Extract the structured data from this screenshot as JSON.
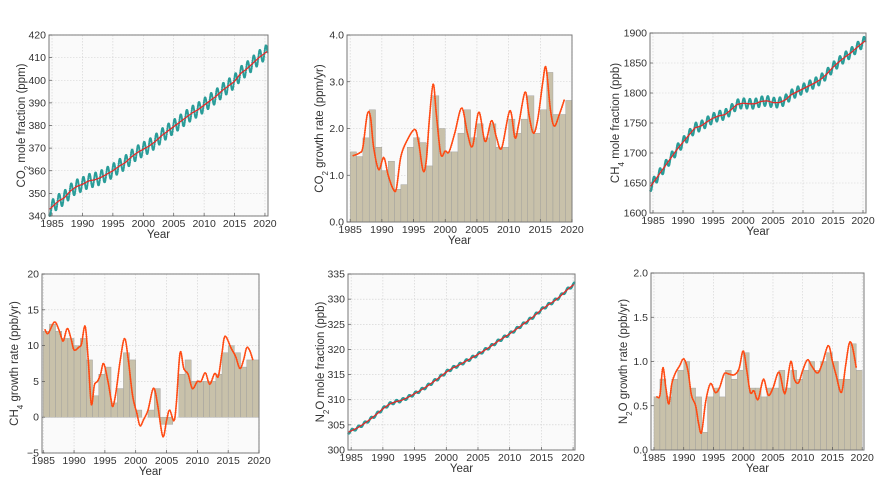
{
  "colors": {
    "bar": "#c8c1aa",
    "bar_edge": "#9a9a9a",
    "curve": "#ff4a12",
    "seasonal": "#2a9d99",
    "trend": "#e02a2a"
  },
  "chart_data": [
    {
      "id": "co2-mole-fraction",
      "type": "line",
      "xlabel": "Year",
      "ylabel": "CO2 mole fraction (ppm)",
      "xlim": [
        1984.5,
        2020.5
      ],
      "ylim": [
        340,
        420
      ],
      "xticks": [
        1985,
        1990,
        1995,
        2000,
        2005,
        2010,
        2015,
        2020
      ],
      "yticks": [
        340,
        350,
        360,
        370,
        380,
        390,
        400,
        410,
        420
      ],
      "grid": true,
      "seasonal_amplitude": 3.0,
      "trend": {
        "x": [
          1985,
          1986,
          1987,
          1988,
          1989,
          1990,
          1991,
          1992,
          1993,
          1994,
          1995,
          1996,
          1997,
          1998,
          1999,
          2000,
          2001,
          2002,
          2003,
          2004,
          2005,
          2006,
          2007,
          2008,
          2009,
          2010,
          2011,
          2012,
          2013,
          2014,
          2015,
          2016,
          2017,
          2018,
          2019,
          2020
        ],
        "y": [
          344,
          346.5,
          348,
          351,
          353,
          354,
          355.5,
          356,
          357,
          358.5,
          360,
          362,
          363.5,
          366,
          368,
          369.5,
          371,
          373,
          375.5,
          377.5,
          379.5,
          381.5,
          383.5,
          385.5,
          387,
          389,
          391,
          393,
          395.5,
          397.5,
          399.5,
          403,
          405,
          407.5,
          410,
          412
        ]
      }
    },
    {
      "id": "co2-growth-rate",
      "type": "bar",
      "xlabel": "Year",
      "ylabel": "CO2 growth rate (ppm/yr)",
      "xlim": [
        1984.5,
        2020
      ],
      "ylim": [
        0,
        4
      ],
      "xticks": [
        1985,
        1990,
        1995,
        2000,
        2005,
        2010,
        2015,
        2020
      ],
      "yticks": [
        0,
        1,
        2,
        3,
        4
      ],
      "ytick_decimals": 1,
      "grid": true,
      "bars": {
        "x_start": 1985,
        "values": [
          1.5,
          1.4,
          1.8,
          2.4,
          1.6,
          1.1,
          1.3,
          0.7,
          0.8,
          1.6,
          1.8,
          1.7,
          1.2,
          2.7,
          2.0,
          1.5,
          1.5,
          1.9,
          2.4,
          1.8,
          2.1,
          1.8,
          2.1,
          1.6,
          1.6,
          2.2,
          1.9,
          2.2,
          2.7,
          1.9,
          2.4,
          3.2,
          2.3,
          2.3,
          2.6
        ]
      },
      "curve": {
        "x": [
          1985.5,
          1986.5,
          1987,
          1987.7,
          1988.2,
          1988.7,
          1989.5,
          1990.3,
          1991,
          1991.8,
          1992.3,
          1993,
          1994,
          1995.2,
          1995.8,
          1996.5,
          1997,
          1997.5,
          1998.1,
          1998.6,
          1999.3,
          2000,
          2000.6,
          2001.5,
          2002.6,
          2003.5,
          2004.3,
          2005.3,
          2006.3,
          2007.3,
          2008.1,
          2008.9,
          2010.2,
          2011,
          2011.6,
          2012.6,
          2013.2,
          2013.9,
          2014.6,
          2015.4,
          2015.9,
          2016.6,
          2017.2,
          2018,
          2018.8
        ],
        "y": [
          1.42,
          1.48,
          1.6,
          2.3,
          2.25,
          1.6,
          1.12,
          1.38,
          1.0,
          0.7,
          0.72,
          1.4,
          1.75,
          1.98,
          1.7,
          1.1,
          1.3,
          2.2,
          2.95,
          2.3,
          1.45,
          1.52,
          1.5,
          1.9,
          2.44,
          1.9,
          1.62,
          2.35,
          1.72,
          2.17,
          1.8,
          1.58,
          2.38,
          1.8,
          2.1,
          2.78,
          2.3,
          1.9,
          2.2,
          3.0,
          3.3,
          2.4,
          2.05,
          2.3,
          2.62
        ]
      }
    },
    {
      "id": "ch4-mole-fraction",
      "type": "line",
      "xlabel": "Year",
      "ylabel": "CH4 mole fraction (ppb)",
      "xlim": [
        1984.5,
        2020.5
      ],
      "ylim": [
        1600,
        1900
      ],
      "xticks": [
        1985,
        1990,
        1995,
        2000,
        2005,
        2010,
        2015,
        2020
      ],
      "yticks": [
        1600,
        1650,
        1700,
        1750,
        1800,
        1850,
        1900
      ],
      "grid": true,
      "seasonal_amplitude": 8,
      "trend": {
        "x": [
          1985,
          1986,
          1987,
          1988,
          1989,
          1990,
          1991,
          1992,
          1993,
          1994,
          1995,
          1996,
          1997,
          1998,
          1999,
          2000,
          2001,
          2002,
          2003,
          2004,
          2005,
          2006,
          2007,
          2008,
          2009,
          2010,
          2011,
          2012,
          2013,
          2014,
          2015,
          2016,
          2017,
          2018,
          2019,
          2020
        ],
        "y": [
          1650,
          1664,
          1678,
          1692,
          1706,
          1718,
          1730,
          1742,
          1745,
          1752,
          1758,
          1762,
          1764,
          1772,
          1781,
          1783,
          1782,
          1782,
          1786,
          1787,
          1784,
          1784,
          1788,
          1797,
          1802,
          1807,
          1812,
          1817,
          1823,
          1832,
          1843,
          1852,
          1860,
          1867,
          1876,
          1884
        ]
      }
    },
    {
      "id": "ch4-growth-rate",
      "type": "bar",
      "xlabel": "Year",
      "ylabel": "CH4 growth rate (ppb/yr)",
      "xlim": [
        1984.8,
        2020
      ],
      "ylim": [
        -5,
        20
      ],
      "xticks": [
        1985,
        1990,
        1995,
        2000,
        2005,
        2010,
        2015,
        2020
      ],
      "yticks": [
        -5,
        0,
        5,
        10,
        15,
        20
      ],
      "ytick_decimals": 0,
      "grid": true,
      "bars": {
        "x_start": 1985,
        "values": [
          12,
          13,
          12,
          11,
          11,
          10,
          11,
          8,
          3,
          6,
          7,
          2,
          4,
          9,
          8,
          1,
          0,
          1,
          4,
          -1,
          -1,
          0,
          6,
          8,
          5,
          5,
          5,
          5,
          6,
          9,
          10,
          9,
          7,
          8,
          8
        ]
      },
      "curve": {
        "x": [
          1985.3,
          1985.8,
          1986.8,
          1987.5,
          1988,
          1988.3,
          1988.9,
          1989.5,
          1990,
          1990.8,
          1991.2,
          1991.8,
          1992.3,
          1992.8,
          1993.3,
          1993.8,
          1994.3,
          1994.8,
          1995.5,
          1996,
          1996.3,
          1996.8,
          1997.5,
          1998.2,
          1998.8,
          1999.5,
          2000.2,
          2000.7,
          2001.3,
          2002,
          2002.7,
          2003.1,
          2003.6,
          2004.4,
          2005,
          2005.5,
          2006.2,
          2006.6,
          2007.2,
          2007.8,
          2008.5,
          2009.2,
          2010,
          2010.6,
          2011.3,
          2012,
          2012.8,
          2013.4,
          2014,
          2014.5,
          2015.5,
          2016.2,
          2016.9,
          2017.5,
          2018,
          2018.5,
          2019
        ],
        "y": [
          12.2,
          11.7,
          13.3,
          12.3,
          11,
          10.7,
          12.4,
          11,
          9.4,
          9.8,
          10.2,
          12.7,
          8,
          1.8,
          4.5,
          5,
          6,
          7.5,
          5,
          2.5,
          1.5,
          3.5,
          8,
          11,
          8,
          3,
          0.5,
          -1.2,
          -0.3,
          1,
          3.7,
          3.8,
          1.5,
          -2.7,
          -0.5,
          1,
          -0.5,
          2,
          9,
          6.8,
          6,
          4,
          5,
          5,
          6.2,
          4.6,
          6.1,
          5.7,
          9,
          11.3,
          9.6,
          8.5,
          6.8,
          8,
          9.7,
          9.3,
          8
        ]
      }
    },
    {
      "id": "n2o-mole-fraction",
      "type": "line",
      "xlabel": "Year",
      "ylabel": "N2O mole fraction (ppb)",
      "xlim": [
        1984.5,
        2020.3
      ],
      "ylim": [
        300,
        335
      ],
      "xticks": [
        1985,
        1990,
        1995,
        2000,
        2005,
        2010,
        2015,
        2020
      ],
      "yticks": [
        300,
        305,
        310,
        315,
        320,
        325,
        330,
        335
      ],
      "grid": true,
      "seasonal_amplitude": 0.3,
      "trend": {
        "x": [
          1985,
          1986,
          1987,
          1988,
          1989,
          1990,
          1991,
          1992,
          1993,
          1994,
          1995,
          1996,
          1997,
          1998,
          1999,
          2000,
          2001,
          2002,
          2003,
          2004,
          2005,
          2006,
          2007,
          2008,
          2009,
          2010,
          2011,
          2012,
          2013,
          2014,
          2015,
          2016,
          2017,
          2018,
          2019,
          2020
        ],
        "y": [
          303.8,
          304.4,
          305.2,
          306.1,
          307.1,
          308.2,
          309.1,
          309.6,
          309.9,
          310.5,
          311.2,
          311.9,
          312.7,
          313.6,
          314.5,
          315.5,
          316.3,
          316.9,
          317.6,
          318.3,
          319.0,
          319.8,
          320.6,
          321.5,
          322.3,
          323.1,
          324.0,
          324.9,
          325.8,
          326.8,
          327.9,
          328.8,
          329.6,
          330.6,
          331.8,
          332.8
        ]
      }
    },
    {
      "id": "n2o-growth-rate",
      "type": "bar",
      "xlabel": "Year",
      "ylabel": "N2O growth rate (ppb/yr)",
      "xlim": [
        1984.5,
        2020.3
      ],
      "ylim": [
        0,
        2
      ],
      "xticks": [
        1985,
        1990,
        1995,
        2000,
        2005,
        2010,
        2015,
        2020
      ],
      "yticks": [
        0,
        0.5,
        1,
        1.5,
        2
      ],
      "ytick_decimals": 1,
      "grid": true,
      "bars": {
        "x_start": 1985,
        "values": [
          0.6,
          0.8,
          0.6,
          0.8,
          0.9,
          1.0,
          0.7,
          0.6,
          0.2,
          0.6,
          0.7,
          0.6,
          0.9,
          0.8,
          0.9,
          1.1,
          0.7,
          0.7,
          0.6,
          0.7,
          0.7,
          0.9,
          0.7,
          0.9,
          0.8,
          0.9,
          1.0,
          0.9,
          1.0,
          1.1,
          1.0,
          0.8,
          0.8,
          1.2,
          0.9
        ]
      },
      "curve": {
        "x": [
          1985.5,
          1986,
          1986.5,
          1987,
          1987.5,
          1988,
          1988.6,
          1989.3,
          1990,
          1990.7,
          1991.3,
          1992,
          1992.5,
          1993,
          1993.7,
          1994.5,
          1995.3,
          1996,
          1996.8,
          1997.5,
          1998.5,
          1999.3,
          2000,
          2000.6,
          2001.2,
          2001.8,
          2002.5,
          2003.4,
          2004.2,
          2005,
          2006,
          2006.8,
          2007.2,
          2008,
          2008.6,
          2009.3,
          2010,
          2010.8,
          2011.5,
          2012.5,
          2013.3,
          2014.3,
          2015,
          2015.6,
          2016.5,
          2017.2,
          2017.8,
          2018.3,
          2019
        ],
        "y": [
          0.6,
          0.62,
          0.93,
          0.7,
          0.52,
          0.75,
          0.87,
          0.95,
          1.03,
          0.9,
          0.62,
          0.5,
          0.3,
          0.2,
          0.55,
          0.75,
          0.65,
          0.7,
          0.86,
          0.86,
          0.85,
          0.92,
          1.12,
          0.9,
          0.65,
          0.67,
          0.57,
          0.8,
          0.62,
          0.7,
          0.88,
          0.66,
          0.68,
          1.0,
          0.8,
          0.76,
          0.9,
          1.02,
          0.95,
          0.87,
          0.98,
          1.18,
          1.0,
          0.85,
          0.65,
          0.95,
          1.2,
          1.18,
          0.93
        ]
      }
    }
  ]
}
